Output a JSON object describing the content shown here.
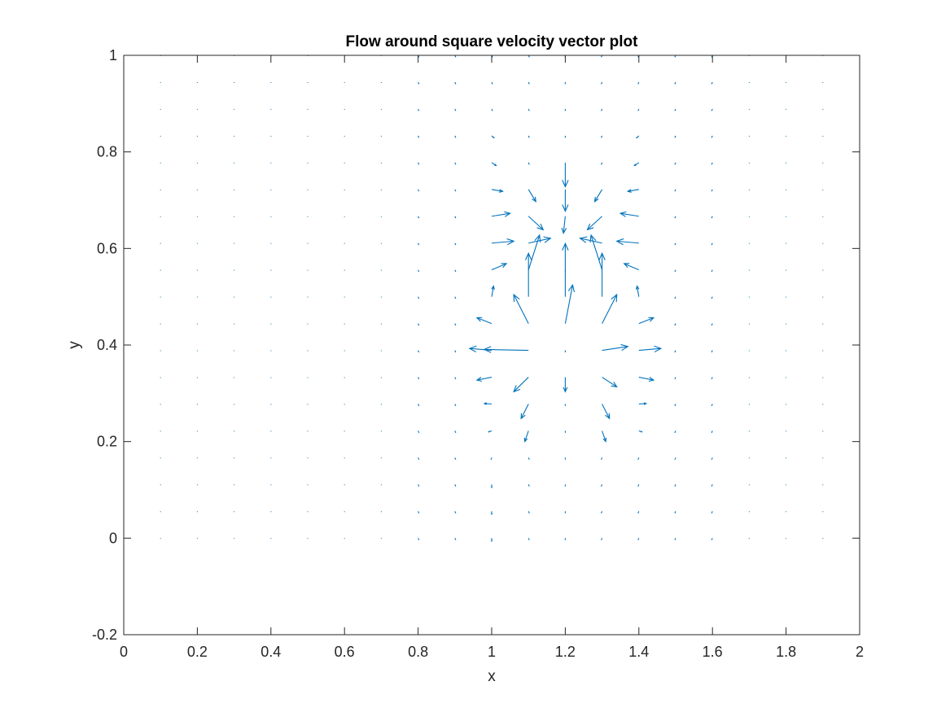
{
  "chart_data": {
    "type": "quiver",
    "title": "Flow around square velocity vector plot",
    "xlabel": "x",
    "ylabel": "y",
    "xlim": [
      0,
      2
    ],
    "ylim": [
      -0.2,
      1
    ],
    "xticks": [
      "0",
      "0.2",
      "0.4",
      "0.6",
      "0.8",
      "1",
      "1.2",
      "1.4",
      "1.6",
      "1.8",
      "2"
    ],
    "yticks": [
      "-0.2",
      "0",
      "0.2",
      "0.4",
      "0.6",
      "0.8",
      "1"
    ],
    "grid": false,
    "box": true,
    "arrow_color": "#0072BD",
    "grid_x": [
      0.1,
      0.2,
      0.3,
      0.4,
      0.5,
      0.6,
      0.7,
      0.8,
      0.9,
      1.0,
      1.1,
      1.2,
      1.3,
      1.4,
      1.5,
      1.6,
      1.7,
      1.8,
      1.9
    ],
    "grid_y": [
      0.0,
      0.0556,
      0.1111,
      0.1667,
      0.2222,
      0.2778,
      0.3333,
      0.3889,
      0.4444,
      0.5,
      0.5556,
      0.6111,
      0.6667,
      0.7222,
      0.7778,
      0.8333,
      0.8889,
      0.9444,
      1.0
    ],
    "vectors": [
      {
        "x": 1.0,
        "y": 0.8333,
        "u": 0.006,
        "v": -0.004
      },
      {
        "x": 1.0,
        "y": 0.7778,
        "u": 0.012,
        "v": -0.006
      },
      {
        "x": 1.0,
        "y": 0.7222,
        "u": 0.03,
        "v": -0.004
      },
      {
        "x": 1.0,
        "y": 0.6667,
        "u": 0.05,
        "v": 0.006
      },
      {
        "x": 1.0,
        "y": 0.6111,
        "u": 0.06,
        "v": 0.004
      },
      {
        "x": 1.0,
        "y": 0.5556,
        "u": 0.04,
        "v": 0.013
      },
      {
        "x": 1.0,
        "y": 0.5,
        "u": 0.005,
        "v": 0.022
      },
      {
        "x": 1.0,
        "y": 0.4444,
        "u": -0.04,
        "v": 0.012
      },
      {
        "x": 1.0,
        "y": 0.3889,
        "u": -0.06,
        "v": 0.004
      },
      {
        "x": 1.0,
        "y": 0.3333,
        "u": -0.04,
        "v": -0.006
      },
      {
        "x": 1.0,
        "y": 0.2778,
        "u": -0.02,
        "v": 0.001
      },
      {
        "x": 1.0,
        "y": 0.2222,
        "u": -0.008,
        "v": -0.002
      },
      {
        "x": 1.0,
        "y": 0.1667,
        "u": -0.002,
        "v": -0.004
      },
      {
        "x": 1.0,
        "y": 0.1111,
        "u": 0.0,
        "v": -0.006
      },
      {
        "x": 1.0,
        "y": 0.0556,
        "u": 0.0,
        "v": -0.006
      },
      {
        "x": 1.0,
        "y": 0.0,
        "u": 0.0,
        "v": -0.006
      },
      {
        "x": 1.1,
        "y": 0.7222,
        "u": 0.02,
        "v": -0.025
      },
      {
        "x": 1.1,
        "y": 0.6667,
        "u": 0.04,
        "v": -0.028
      },
      {
        "x": 1.1,
        "y": 0.6111,
        "u": 0.06,
        "v": 0.01
      },
      {
        "x": 1.1,
        "y": 0.5556,
        "u": 0.03,
        "v": 0.072
      },
      {
        "x": 1.1,
        "y": 0.5,
        "u": 0.0,
        "v": 0.09
      },
      {
        "x": 1.1,
        "y": 0.4444,
        "u": -0.04,
        "v": 0.06
      },
      {
        "x": 1.1,
        "y": 0.3889,
        "u": -0.12,
        "v": 0.002
      },
      {
        "x": 1.1,
        "y": 0.3333,
        "u": -0.04,
        "v": -0.03
      },
      {
        "x": 1.1,
        "y": 0.2778,
        "u": -0.02,
        "v": -0.03
      },
      {
        "x": 1.1,
        "y": 0.2222,
        "u": -0.01,
        "v": -0.022
      },
      {
        "x": 1.2,
        "y": 0.7778,
        "u": 0.0,
        "v": -0.05
      },
      {
        "x": 1.2,
        "y": 0.7222,
        "u": 0.0,
        "v": -0.045
      },
      {
        "x": 1.2,
        "y": 0.6667,
        "u": -0.005,
        "v": -0.035
      },
      {
        "x": 1.2,
        "y": 0.5,
        "u": 0.0,
        "v": 0.11
      },
      {
        "x": 1.2,
        "y": 0.4444,
        "u": 0.02,
        "v": 0.08
      },
      {
        "x": 1.2,
        "y": 0.3333,
        "u": 0.0,
        "v": -0.03
      },
      {
        "x": 1.3,
        "y": 0.7222,
        "u": -0.02,
        "v": -0.025
      },
      {
        "x": 1.3,
        "y": 0.6667,
        "u": -0.04,
        "v": -0.028
      },
      {
        "x": 1.3,
        "y": 0.6111,
        "u": -0.06,
        "v": 0.01
      },
      {
        "x": 1.3,
        "y": 0.5556,
        "u": -0.03,
        "v": 0.072
      },
      {
        "x": 1.3,
        "y": 0.5,
        "u": 0.0,
        "v": 0.09
      },
      {
        "x": 1.3,
        "y": 0.4444,
        "u": 0.04,
        "v": 0.06
      },
      {
        "x": 1.3,
        "y": 0.3889,
        "u": 0.07,
        "v": 0.008
      },
      {
        "x": 1.3,
        "y": 0.3333,
        "u": 0.04,
        "v": -0.02
      },
      {
        "x": 1.3,
        "y": 0.2778,
        "u": 0.02,
        "v": -0.03
      },
      {
        "x": 1.3,
        "y": 0.2222,
        "u": 0.01,
        "v": -0.022
      },
      {
        "x": 1.4,
        "y": 0.8333,
        "u": -0.006,
        "v": -0.004
      },
      {
        "x": 1.4,
        "y": 0.7778,
        "u": -0.012,
        "v": -0.006
      },
      {
        "x": 1.4,
        "y": 0.7222,
        "u": -0.03,
        "v": -0.004
      },
      {
        "x": 1.4,
        "y": 0.6667,
        "u": -0.05,
        "v": 0.006
      },
      {
        "x": 1.4,
        "y": 0.6111,
        "u": -0.06,
        "v": 0.004
      },
      {
        "x": 1.4,
        "y": 0.5556,
        "u": -0.04,
        "v": 0.013
      },
      {
        "x": 1.4,
        "y": 0.5,
        "u": -0.005,
        "v": 0.022
      },
      {
        "x": 1.4,
        "y": 0.4444,
        "u": 0.04,
        "v": 0.012
      },
      {
        "x": 1.4,
        "y": 0.3889,
        "u": 0.06,
        "v": 0.004
      },
      {
        "x": 1.4,
        "y": 0.3333,
        "u": 0.04,
        "v": -0.006
      },
      {
        "x": 1.4,
        "y": 0.2778,
        "u": 0.02,
        "v": 0.001
      },
      {
        "x": 1.4,
        "y": 0.2222,
        "u": 0.008,
        "v": -0.002
      }
    ]
  }
}
